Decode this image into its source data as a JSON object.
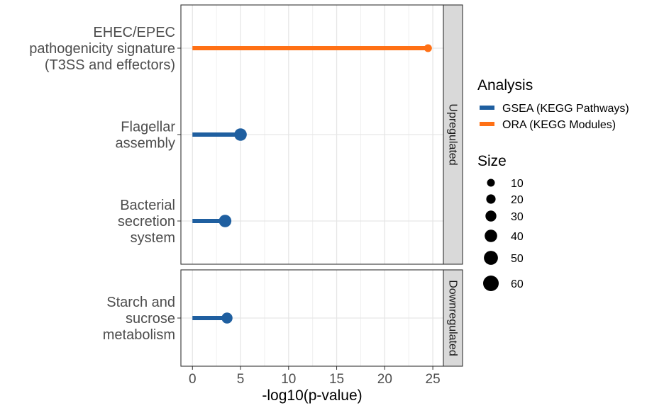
{
  "chart_data": {
    "type": "lollipop",
    "xlabel": "-log10(p-value)",
    "xlim": [
      -1.2,
      26.1
    ],
    "x_ticks": [
      0,
      5,
      10,
      15,
      20,
      25
    ],
    "grid": true,
    "facets": [
      {
        "name": "Upregulated",
        "items": [
          {
            "label": [
              "EHEC/EPEC",
              "pathogenicity signature",
              "(T3SS and effectors)"
            ],
            "value": 24.5,
            "size": 10,
            "analysis": "ORA (KEGG Modules)"
          },
          {
            "label": [
              "Flagellar",
              "assembly"
            ],
            "value": 5.0,
            "size": 40,
            "analysis": "GSEA (KEGG Pathways)"
          },
          {
            "label": [
              "Bacterial",
              "secretion",
              "system"
            ],
            "value": 3.4,
            "size": 40,
            "analysis": "GSEA (KEGG Pathways)"
          }
        ]
      },
      {
        "name": "Downregulated",
        "items": [
          {
            "label": [
              "Starch and",
              "sucrose",
              "metabolism"
            ],
            "value": 3.6,
            "size": 30,
            "analysis": "GSEA (KEGG Pathways)"
          }
        ]
      }
    ],
    "legend": {
      "placement": "right",
      "analysis_title": "Analysis",
      "analysis_items": [
        {
          "label": "GSEA (KEGG Pathways)",
          "color": "#1f5fa0"
        },
        {
          "label": "ORA (KEGG Modules)",
          "color": "#ff7015"
        }
      ],
      "size_title": "Size",
      "size_items": [
        {
          "label": "10",
          "value": 10
        },
        {
          "label": "20",
          "value": 20
        },
        {
          "label": "30",
          "value": 30
        },
        {
          "label": "40",
          "value": 40
        },
        {
          "label": "50",
          "value": 50
        },
        {
          "label": "60",
          "value": 60
        }
      ]
    }
  }
}
